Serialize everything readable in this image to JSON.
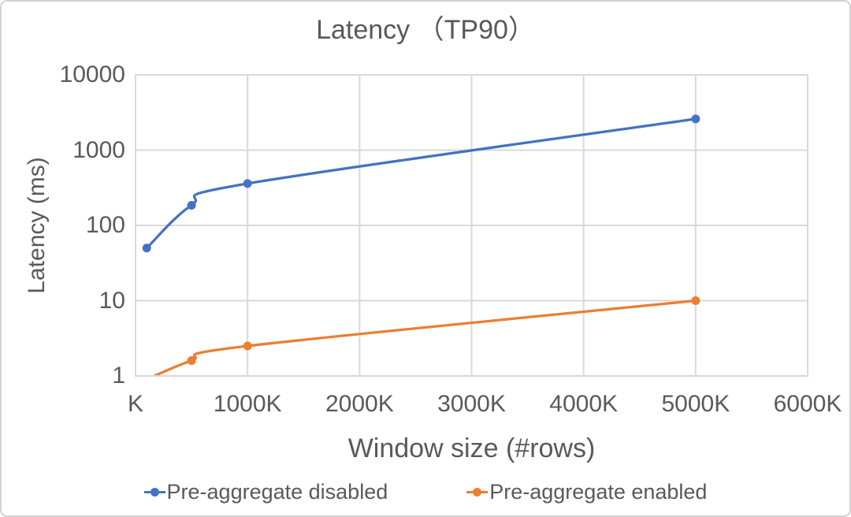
{
  "chart_data": {
    "type": "line",
    "title": "Latency （TP90）",
    "xlabel": "Window size (#rows)",
    "ylabel": "Latency (ms)",
    "x": [
      100,
      500,
      1000,
      5000
    ],
    "series": [
      {
        "name": "Pre-aggregate disabled",
        "color": "#4472C4",
        "values": [
          50,
          185,
          360,
          2600
        ]
      },
      {
        "name": "Pre-aggregate enabled",
        "color": "#ED7D31",
        "values": [
          0.9,
          1.6,
          2.5,
          10
        ]
      }
    ],
    "xlim": [
      0,
      6000
    ],
    "ylim": [
      1,
      10000
    ],
    "x_scale": "linear",
    "y_scale": "log",
    "grid": true,
    "line_style": "smoothed-with-round-markers",
    "legend_position": "bottom",
    "x_tick_labels": [
      "K",
      "1000K",
      "2000K",
      "3000K",
      "4000K",
      "5000K",
      "6000K"
    ],
    "y_tick_labels": [
      "10000",
      "1000",
      "100",
      "10",
      "1"
    ]
  },
  "colors": {
    "series_disabled": "#4472C4",
    "series_enabled": "#ED7D31",
    "text": "#595959",
    "gridline": "#D9D9D9",
    "plot_border": "#D9D9D9",
    "background": "#FFFFFF"
  }
}
